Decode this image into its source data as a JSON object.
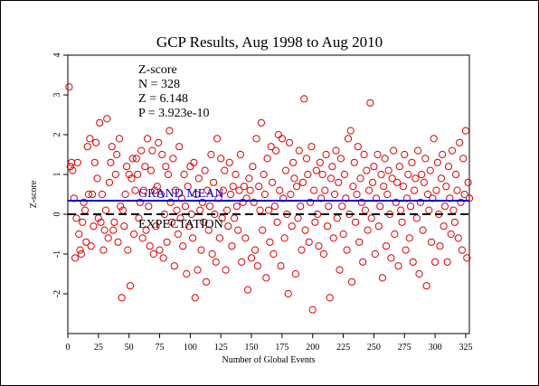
{
  "chart_data": {
    "type": "scatter",
    "title": "GCP Results, Aug 1998 to Aug 2010",
    "xlabel": "Number of Global Events",
    "ylabel": "Z-score",
    "xlim": [
      0,
      328
    ],
    "ylim": [
      -3,
      4
    ],
    "x_ticks": [
      "0",
      "25",
      "50",
      "75",
      "100",
      "125",
      "150",
      "175",
      "200",
      "225",
      "250",
      "275",
      "300",
      "325"
    ],
    "y_ticks": [
      "-2",
      "-1",
      "0",
      "1",
      "2",
      "3",
      "4"
    ],
    "grid": false,
    "stats": {
      "heading": "Z-score",
      "n": "N = 328",
      "z": "Z = 6.148",
      "p": "P = 3.923e-10"
    },
    "reference_lines": [
      {
        "label": "GRAND MEAN",
        "y": 0.34,
        "color": "#0000cc",
        "style": "solid"
      },
      {
        "label": "EXPECTATION",
        "y": 0.0,
        "color": "#000000",
        "style": "dashed"
      }
    ],
    "point_color": "#dd0000",
    "points": [
      [
        1,
        3.2
      ],
      [
        2,
        1.2
      ],
      [
        3,
        1.3
      ],
      [
        4,
        1.1
      ],
      [
        5,
        0.4
      ],
      [
        6,
        -1.1
      ],
      [
        7,
        -0.1
      ],
      [
        8,
        1.3
      ],
      [
        9,
        -0.5
      ],
      [
        10,
        -0.9
      ],
      [
        11,
        -1.0
      ],
      [
        12,
        -0.2
      ],
      [
        13,
        0.3
      ],
      [
        14,
        0.1
      ],
      [
        15,
        -0.7
      ],
      [
        16,
        1.7
      ],
      [
        17,
        0.5
      ],
      [
        18,
        1.9
      ],
      [
        19,
        -0.8
      ],
      [
        20,
        0.5
      ],
      [
        21,
        -0.3
      ],
      [
        22,
        1.3
      ],
      [
        23,
        1.8
      ],
      [
        24,
        0.9
      ],
      [
        25,
        -0.1
      ],
      [
        26,
        2.3
      ],
      [
        27,
        -0.2
      ],
      [
        28,
        0.5
      ],
      [
        29,
        -0.9
      ],
      [
        30,
        -0.4
      ],
      [
        31,
        0.1
      ],
      [
        32,
        2.4
      ],
      [
        33,
        -0.6
      ],
      [
        34,
        0.8
      ],
      [
        35,
        1.3
      ],
      [
        36,
        1.7
      ],
      [
        37,
        -0.4
      ],
      [
        38,
        -0.2
      ],
      [
        39,
        1.0
      ],
      [
        40,
        1.5
      ],
      [
        41,
        -0.7
      ],
      [
        42,
        1.9
      ],
      [
        43,
        0.2
      ],
      [
        44,
        -2.1
      ],
      [
        45,
        0.1
      ],
      [
        46,
        -0.3
      ],
      [
        47,
        0.5
      ],
      [
        48,
        1.2
      ],
      [
        49,
        -0.9
      ],
      [
        50,
        1.0
      ],
      [
        51,
        -1.8
      ],
      [
        52,
        0.9
      ],
      [
        53,
        1.4
      ],
      [
        54,
        -0.5
      ],
      [
        55,
        0.6
      ],
      [
        56,
        1.4
      ],
      [
        57,
        1.0
      ],
      [
        58,
        -0.1
      ],
      [
        59,
        0.3
      ],
      [
        60,
        1.6
      ],
      [
        61,
        -0.6
      ],
      [
        62,
        0.6
      ],
      [
        63,
        1.2
      ],
      [
        64,
        -0.4
      ],
      [
        65,
        1.9
      ],
      [
        66,
        0.2
      ],
      [
        67,
        -0.8
      ],
      [
        68,
        1.1
      ],
      [
        69,
        1.6
      ],
      [
        70,
        -1.0
      ],
      [
        71,
        0.6
      ],
      [
        72,
        -0.3
      ],
      [
        73,
        0.7
      ],
      [
        74,
        1.8
      ],
      [
        75,
        -0.9
      ],
      [
        76,
        0.5
      ],
      [
        77,
        1.5
      ],
      [
        78,
        -1.1
      ],
      [
        79,
        0.0
      ],
      [
        80,
        1.2
      ],
      [
        81,
        -0.7
      ],
      [
        82,
        1.0
      ],
      [
        83,
        2.1
      ],
      [
        84,
        0.3
      ],
      [
        85,
        -0.2
      ],
      [
        86,
        1.4
      ],
      [
        87,
        -1.3
      ],
      [
        88,
        0.6
      ],
      [
        89,
        0.1
      ],
      [
        90,
        -0.5
      ],
      [
        91,
        1.7
      ],
      [
        92,
        -0.1
      ],
      [
        93,
        0.4
      ],
      [
        94,
        -0.8
      ],
      [
        95,
        1.0
      ],
      [
        96,
        0.2
      ],
      [
        97,
        -1.5
      ],
      [
        98,
        0.7
      ],
      [
        99,
        -0.3
      ],
      [
        100,
        1.2
      ],
      [
        101,
        0.0
      ],
      [
        102,
        -0.6
      ],
      [
        103,
        1.3
      ],
      [
        104,
        -2.1
      ],
      [
        105,
        0.5
      ],
      [
        106,
        -1.4
      ],
      [
        107,
        0.9
      ],
      [
        108,
        0.1
      ],
      [
        109,
        -0.9
      ],
      [
        110,
        0.3
      ],
      [
        111,
        -0.2
      ],
      [
        112,
        1.1
      ],
      [
        113,
        -1.7
      ],
      [
        114,
        0.6
      ],
      [
        115,
        -0.4
      ],
      [
        116,
        0.2
      ],
      [
        117,
        1.5
      ],
      [
        118,
        -1.0
      ],
      [
        119,
        0.8
      ],
      [
        120,
        0.0
      ],
      [
        121,
        -1.2
      ],
      [
        122,
        1.9
      ],
      [
        123,
        0.4
      ],
      [
        124,
        -0.6
      ],
      [
        125,
        1.4
      ],
      [
        126,
        -0.1
      ],
      [
        127,
        0.6
      ],
      [
        128,
        1.1
      ],
      [
        129,
        -1.4
      ],
      [
        130,
        0.1
      ],
      [
        131,
        -0.3
      ],
      [
        132,
        1.3
      ],
      [
        133,
        0.5
      ],
      [
        134,
        -0.8
      ],
      [
        135,
        0.7
      ],
      [
        136,
        -0.1
      ],
      [
        137,
        1.0
      ],
      [
        138,
        0.2
      ],
      [
        139,
        -0.4
      ],
      [
        140,
        0.6
      ],
      [
        141,
        1.5
      ],
      [
        142,
        -1.2
      ],
      [
        143,
        0.3
      ],
      [
        144,
        0.7
      ],
      [
        145,
        -0.6
      ],
      [
        146,
        0.4
      ],
      [
        147,
        -1.9
      ],
      [
        148,
        0.9
      ],
      [
        149,
        0.6
      ],
      [
        150,
        -1.1
      ],
      [
        151,
        1.2
      ],
      [
        152,
        0.3
      ],
      [
        153,
        -0.9
      ],
      [
        154,
        1.9
      ],
      [
        155,
        -1.3
      ],
      [
        156,
        0.7
      ],
      [
        157,
        0.1
      ],
      [
        158,
        2.3
      ],
      [
        159,
        -0.4
      ],
      [
        160,
        1.0
      ],
      [
        161,
        0.5
      ],
      [
        162,
        -1.6
      ],
      [
        163,
        1.4
      ],
      [
        164,
        0.1
      ],
      [
        165,
        -0.7
      ],
      [
        166,
        1.7
      ],
      [
        167,
        0.8
      ],
      [
        168,
        -1.0
      ],
      [
        169,
        0.2
      ],
      [
        170,
        1.6
      ],
      [
        171,
        -0.2
      ],
      [
        172,
        2.0
      ],
      [
        173,
        0.6
      ],
      [
        174,
        -1.3
      ],
      [
        175,
        1.9
      ],
      [
        176,
        0.4
      ],
      [
        177,
        -0.6
      ],
      [
        178,
        1.1
      ],
      [
        179,
        0.0
      ],
      [
        180,
        -2.0
      ],
      [
        181,
        1.8
      ],
      [
        182,
        0.5
      ],
      [
        183,
        -0.3
      ],
      [
        184,
        1.3
      ],
      [
        185,
        0.9
      ],
      [
        186,
        -1.5
      ],
      [
        187,
        0.7
      ],
      [
        188,
        -0.1
      ],
      [
        189,
        1.6
      ],
      [
        190,
        0.2
      ],
      [
        191,
        -0.9
      ],
      [
        192,
        0.8
      ],
      [
        193,
        2.9
      ],
      [
        194,
        -0.4
      ],
      [
        195,
        1.4
      ],
      [
        196,
        1.0
      ],
      [
        197,
        -0.7
      ],
      [
        198,
        0.3
      ],
      [
        199,
        1.7
      ],
      [
        200,
        -2.4
      ],
      [
        201,
        0.6
      ],
      [
        202,
        -0.2
      ],
      [
        203,
        1.1
      ],
      [
        204,
        0.0
      ],
      [
        205,
        -0.8
      ],
      [
        206,
        1.3
      ],
      [
        207,
        0.4
      ],
      [
        208,
        1.0
      ],
      [
        209,
        -1.0
      ],
      [
        210,
        0.6
      ],
      [
        211,
        1.5
      ],
      [
        212,
        -0.3
      ],
      [
        213,
        0.2
      ],
      [
        214,
        -2.1
      ],
      [
        215,
        0.9
      ],
      [
        216,
        1.2
      ],
      [
        217,
        -0.6
      ],
      [
        218,
        0.5
      ],
      [
        219,
        1.6
      ],
      [
        220,
        -0.1
      ],
      [
        221,
        0.8
      ],
      [
        222,
        -1.4
      ],
      [
        223,
        1.4
      ],
      [
        224,
        0.2
      ],
      [
        225,
        -0.5
      ],
      [
        226,
        1.0
      ],
      [
        227,
        0.4
      ],
      [
        228,
        -0.9
      ],
      [
        229,
        1.9
      ],
      [
        230,
        0.0
      ],
      [
        231,
        2.1
      ],
      [
        232,
        -1.7
      ],
      [
        233,
        0.7
      ],
      [
        234,
        1.3
      ],
      [
        235,
        -0.2
      ],
      [
        236,
        0.5
      ],
      [
        237,
        1.7
      ],
      [
        238,
        -0.7
      ],
      [
        239,
        0.9
      ],
      [
        240,
        0.3
      ],
      [
        241,
        -1.2
      ],
      [
        242,
        1.5
      ],
      [
        243,
        0.1
      ],
      [
        244,
        1.1
      ],
      [
        245,
        -0.4
      ],
      [
        246,
        0.6
      ],
      [
        247,
        2.8
      ],
      [
        248,
        -0.1
      ],
      [
        249,
        0.8
      ],
      [
        250,
        1.2
      ],
      [
        251,
        -1.0
      ],
      [
        252,
        0.4
      ],
      [
        253,
        1.5
      ],
      [
        254,
        -0.3
      ],
      [
        255,
        0.2
      ],
      [
        256,
        1.0
      ],
      [
        257,
        -1.6
      ],
      [
        258,
        0.7
      ],
      [
        259,
        1.4
      ],
      [
        260,
        -0.8
      ],
      [
        261,
        0.5
      ],
      [
        262,
        1.1
      ],
      [
        263,
        0.0
      ],
      [
        264,
        -1.1
      ],
      [
        265,
        0.9
      ],
      [
        266,
        1.6
      ],
      [
        267,
        -0.5
      ],
      [
        268,
        0.3
      ],
      [
        269,
        0.8
      ],
      [
        270,
        -1.3
      ],
      [
        271,
        1.2
      ],
      [
        272,
        0.1
      ],
      [
        273,
        -0.2
      ],
      [
        274,
        0.7
      ],
      [
        275,
        1.5
      ],
      [
        276,
        -0.9
      ],
      [
        277,
        0.4
      ],
      [
        278,
        1.0
      ],
      [
        279,
        -0.6
      ],
      [
        280,
        0.2
      ],
      [
        281,
        1.3
      ],
      [
        282,
        -1.2
      ],
      [
        283,
        0.6
      ],
      [
        284,
        0.9
      ],
      [
        285,
        -0.1
      ],
      [
        286,
        1.6
      ],
      [
        287,
        -1.5
      ],
      [
        288,
        0.3
      ],
      [
        289,
        1.0
      ],
      [
        290,
        -0.4
      ],
      [
        291,
        0.8
      ],
      [
        292,
        1.4
      ],
      [
        293,
        -1.8
      ],
      [
        294,
        0.5
      ],
      [
        295,
        0.1
      ],
      [
        296,
        1.1
      ],
      [
        297,
        -0.7
      ],
      [
        298,
        0.4
      ],
      [
        299,
        1.9
      ],
      [
        300,
        -1.2
      ],
      [
        301,
        0.6
      ],
      [
        302,
        1.3
      ],
      [
        303,
        0.0
      ],
      [
        304,
        -0.8
      ],
      [
        305,
        0.9
      ],
      [
        306,
        1.5
      ],
      [
        307,
        -0.3
      ],
      [
        308,
        0.2
      ],
      [
        309,
        0.7
      ],
      [
        310,
        -1.2
      ],
      [
        311,
        1.2
      ],
      [
        312,
        0.4
      ],
      [
        313,
        -0.5
      ],
      [
        314,
        1.6
      ],
      [
        315,
        0.1
      ],
      [
        316,
        -0.2
      ],
      [
        317,
        1.0
      ],
      [
        318,
        0.6
      ],
      [
        319,
        -0.6
      ],
      [
        320,
        1.8
      ],
      [
        321,
        0.3
      ],
      [
        322,
        -0.9
      ],
      [
        323,
        1.4
      ],
      [
        324,
        0.5
      ],
      [
        325,
        2.1
      ],
      [
        326,
        -1.1
      ],
      [
        327,
        0.8
      ],
      [
        328,
        0.4
      ]
    ]
  }
}
